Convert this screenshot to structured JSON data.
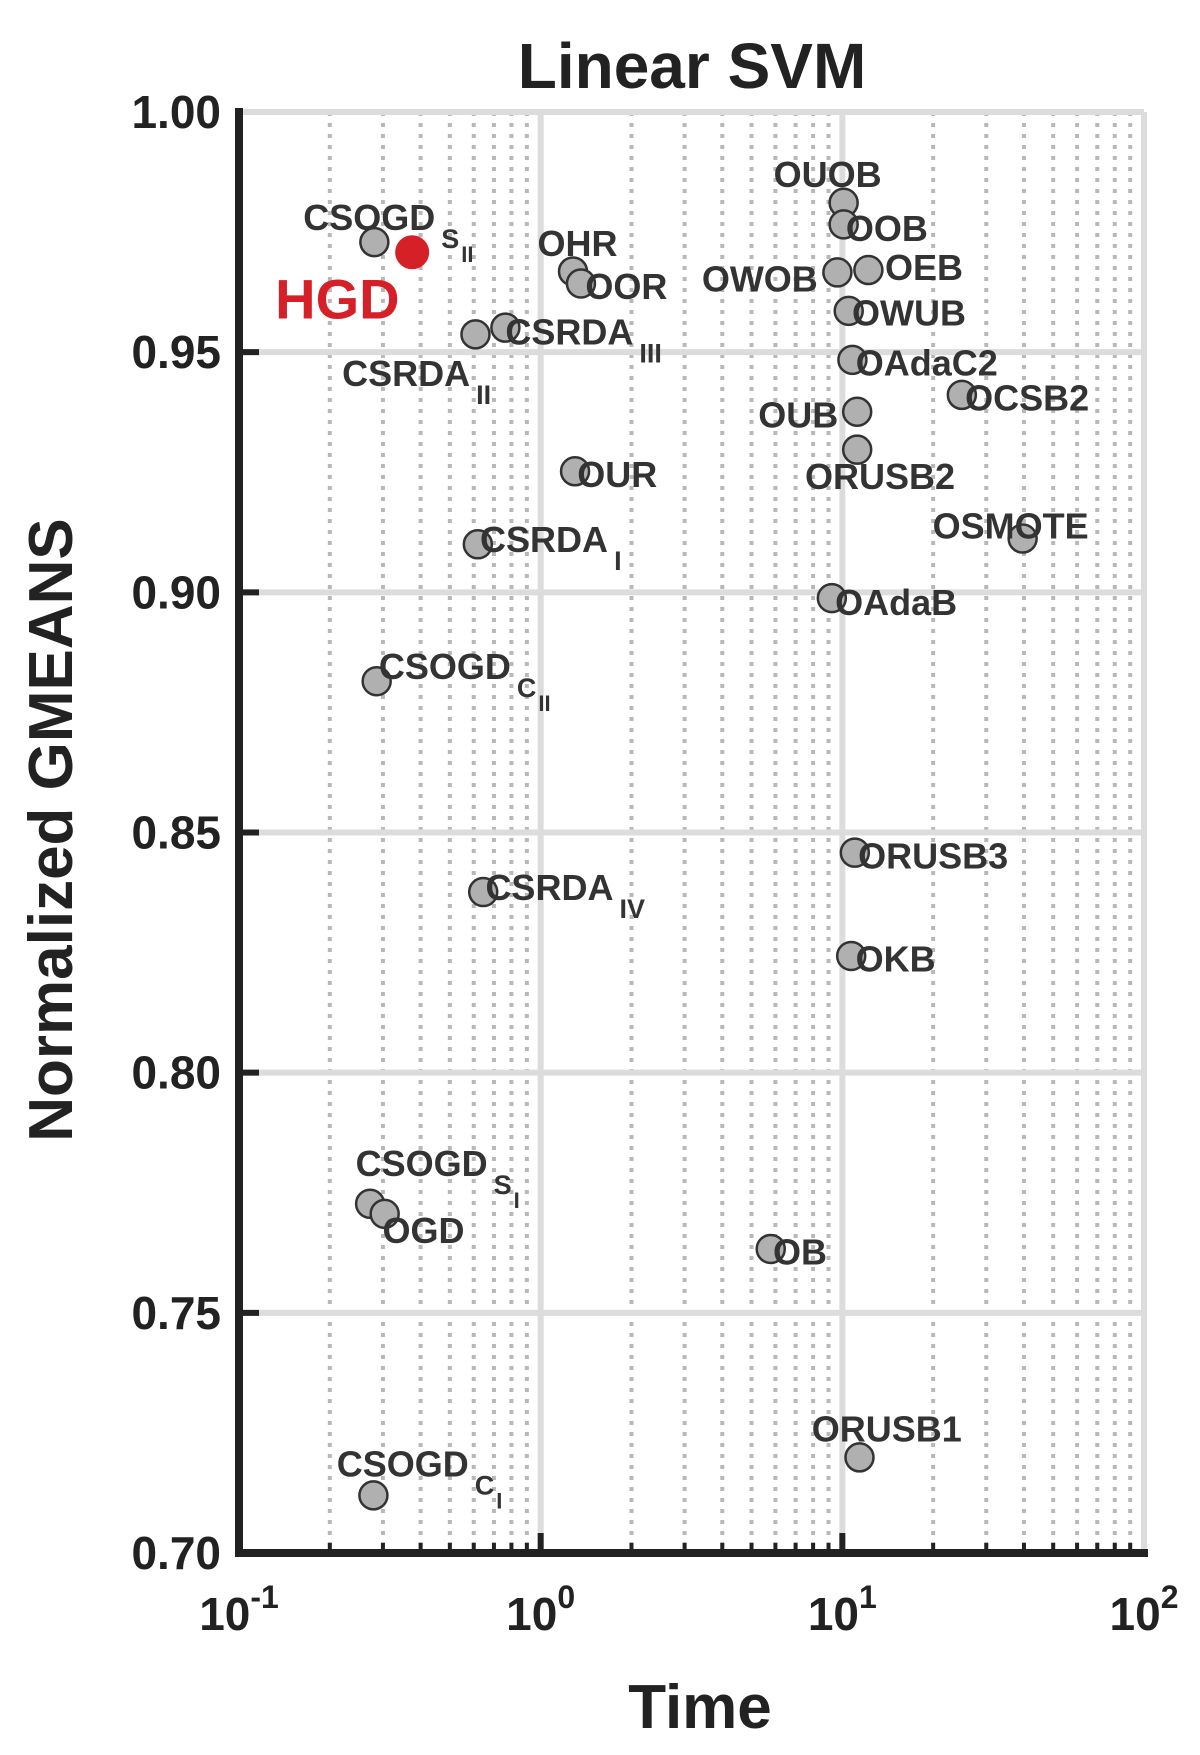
{
  "chart_data": {
    "type": "scatter",
    "title": "Linear SVM",
    "xlabel": "Time",
    "ylabel": "Normalized GMEANS",
    "xscale": "log",
    "grid": true,
    "xlim": [
      0.1,
      100
    ],
    "ylim": [
      0.7,
      1.0
    ],
    "xticks": [
      {
        "value": 0.1,
        "label": "10",
        "exponent": "-1"
      },
      {
        "value": 1,
        "label": "10",
        "exponent": "0"
      },
      {
        "value": 10,
        "label": "10",
        "exponent": "1"
      },
      {
        "value": 100,
        "label": "10",
        "exponent": "2"
      }
    ],
    "xminorticks": [
      0.2,
      0.3,
      0.4,
      0.5,
      0.6,
      0.7,
      0.8,
      0.9,
      2,
      3,
      4,
      5,
      6,
      7,
      8,
      9,
      20,
      30,
      40,
      50,
      60,
      70,
      80,
      90
    ],
    "yticks": [
      {
        "value": 0.7,
        "label": "0.70"
      },
      {
        "value": 0.75,
        "label": "0.75"
      },
      {
        "value": 0.8,
        "label": "0.80"
      },
      {
        "value": 0.85,
        "label": "0.85"
      },
      {
        "value": 0.9,
        "label": "0.90"
      },
      {
        "value": 0.95,
        "label": "0.95"
      },
      {
        "value": 1.0,
        "label": "1.00"
      }
    ],
    "series": [
      {
        "name": "HGD",
        "color": "#d62027",
        "x": [
          0.375
        ],
        "y": [
          0.9708
        ]
      },
      {
        "color": "#b0b0b0",
        "x": [
          0.281,
          1.28,
          1.36,
          0.764,
          0.608,
          1.3,
          0.619,
          0.286,
          0.645,
          0.272,
          0.304,
          0.279,
          10.1,
          10.1,
          9.63,
          12.2,
          10.5,
          10.8,
          24.9,
          11.2,
          11.2,
          39.6,
          9.23,
          11.0,
          10.7,
          5.79,
          11.4
        ],
        "y": [
          0.9729,
          0.9668,
          0.9643,
          0.9551,
          0.9537,
          0.9252,
          0.91,
          0.8815,
          0.8376,
          0.7727,
          0.7706,
          0.712,
          0.9811,
          0.9766,
          0.9666,
          0.9671,
          0.9586,
          0.9484,
          0.9411,
          0.9376,
          0.9297,
          0.9112,
          0.8988,
          0.8458,
          0.8243,
          0.7633,
          0.7199
        ],
        "labels": [
          {
            "text": "CSOGD",
            "sub": "S",
            "subsub": "II"
          },
          {
            "text": "OHR"
          },
          {
            "text": "OOR"
          },
          {
            "text": "CSRDA",
            "sub": "III"
          },
          {
            "text": "CSRDA",
            "sub": "II"
          },
          {
            "text": "OUR"
          },
          {
            "text": "CSRDA",
            "sub": "I"
          },
          {
            "text": "CSOGD",
            "sub": "C",
            "subsub": "II"
          },
          {
            "text": "CSRDA",
            "sub": "IV"
          },
          {
            "text": "CSOGD",
            "sub": "S",
            "subsub": "I"
          },
          {
            "text": "OGD"
          },
          {
            "text": "CSOGD",
            "sub": "C",
            "subsub": "I"
          },
          {
            "text": "OUOB"
          },
          {
            "text": "OOB"
          },
          {
            "text": "OWOB"
          },
          {
            "text": "OEB"
          },
          {
            "text": "OWUB"
          },
          {
            "text": "OAdaC2"
          },
          {
            "text": "OCSB2"
          },
          {
            "text": "OUB"
          },
          {
            "text": "ORUSB2"
          },
          {
            "text": "OSMOTE"
          },
          {
            "text": "OAdaB"
          },
          {
            "text": "ORUSB3"
          },
          {
            "text": "OKB"
          },
          {
            "text": "OB"
          },
          {
            "text": "ORUSB1"
          }
        ]
      }
    ]
  }
}
